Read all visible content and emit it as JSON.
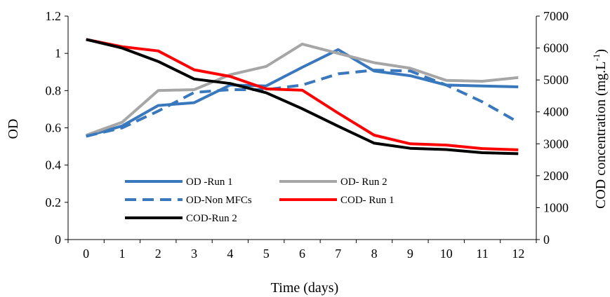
{
  "chart_data": {
    "type": "line",
    "title": "",
    "xlabel": "Time (days)",
    "ylabel_left": "OD",
    "ylabel_right": "COD concentration (mg.L-1)",
    "ylabel_right_parts": {
      "base": "COD concentration (mg.L",
      "sup": "-1",
      "end": ")"
    },
    "x": [
      0,
      1,
      2,
      3,
      4,
      5,
      6,
      7,
      8,
      9,
      10,
      11,
      12
    ],
    "x_tick_labels": [
      "0",
      "1",
      "2",
      "3",
      "4",
      "5",
      "6",
      "7",
      "8",
      "9",
      "10",
      "11",
      "12"
    ],
    "ylim_left": [
      0,
      1.2
    ],
    "yticks_left": [
      "0",
      "0.2",
      "0.4",
      "0.6",
      "0.8",
      "1",
      "1.2"
    ],
    "ylim_right": [
      0,
      7000
    ],
    "yticks_right": [
      "0",
      "1000",
      "2000",
      "3000",
      "4000",
      "5000",
      "6000",
      "7000"
    ],
    "grid": false,
    "legend_position": "lower-left-center",
    "series": [
      {
        "name": "OD -Run 1",
        "axis": "left",
        "color": "#3a78bd",
        "style": "solid",
        "values": [
          0.555,
          0.61,
          0.72,
          0.735,
          0.83,
          0.825,
          0.925,
          1.02,
          0.905,
          0.88,
          0.83,
          0.825,
          0.82
        ]
      },
      {
        "name": "OD- Run 2",
        "axis": "left",
        "color": "#a6a6a6",
        "style": "solid",
        "values": [
          0.56,
          0.63,
          0.8,
          0.805,
          0.885,
          0.93,
          1.05,
          1.0,
          0.95,
          0.92,
          0.855,
          0.85,
          0.87
        ]
      },
      {
        "name": "OD-Non MFCs",
        "axis": "left",
        "color": "#3a78bd",
        "style": "dashed",
        "values": [
          0.555,
          0.6,
          0.69,
          0.79,
          0.805,
          0.805,
          0.83,
          0.89,
          0.91,
          0.905,
          0.83,
          0.74,
          0.63
        ]
      },
      {
        "name": "COD- Run 1",
        "axis": "right",
        "color": "#ff0000",
        "style": "solid",
        "values": [
          6270,
          6040,
          5910,
          5320,
          5110,
          4720,
          4680,
          3960,
          3270,
          3000,
          2960,
          2850,
          2810
        ]
      },
      {
        "name": "COD-Run 2",
        "axis": "right",
        "color": "#000000",
        "style": "solid",
        "values": [
          6270,
          6000,
          5580,
          5030,
          4890,
          4600,
          4100,
          3550,
          3020,
          2860,
          2820,
          2720,
          2690
        ]
      }
    ]
  }
}
